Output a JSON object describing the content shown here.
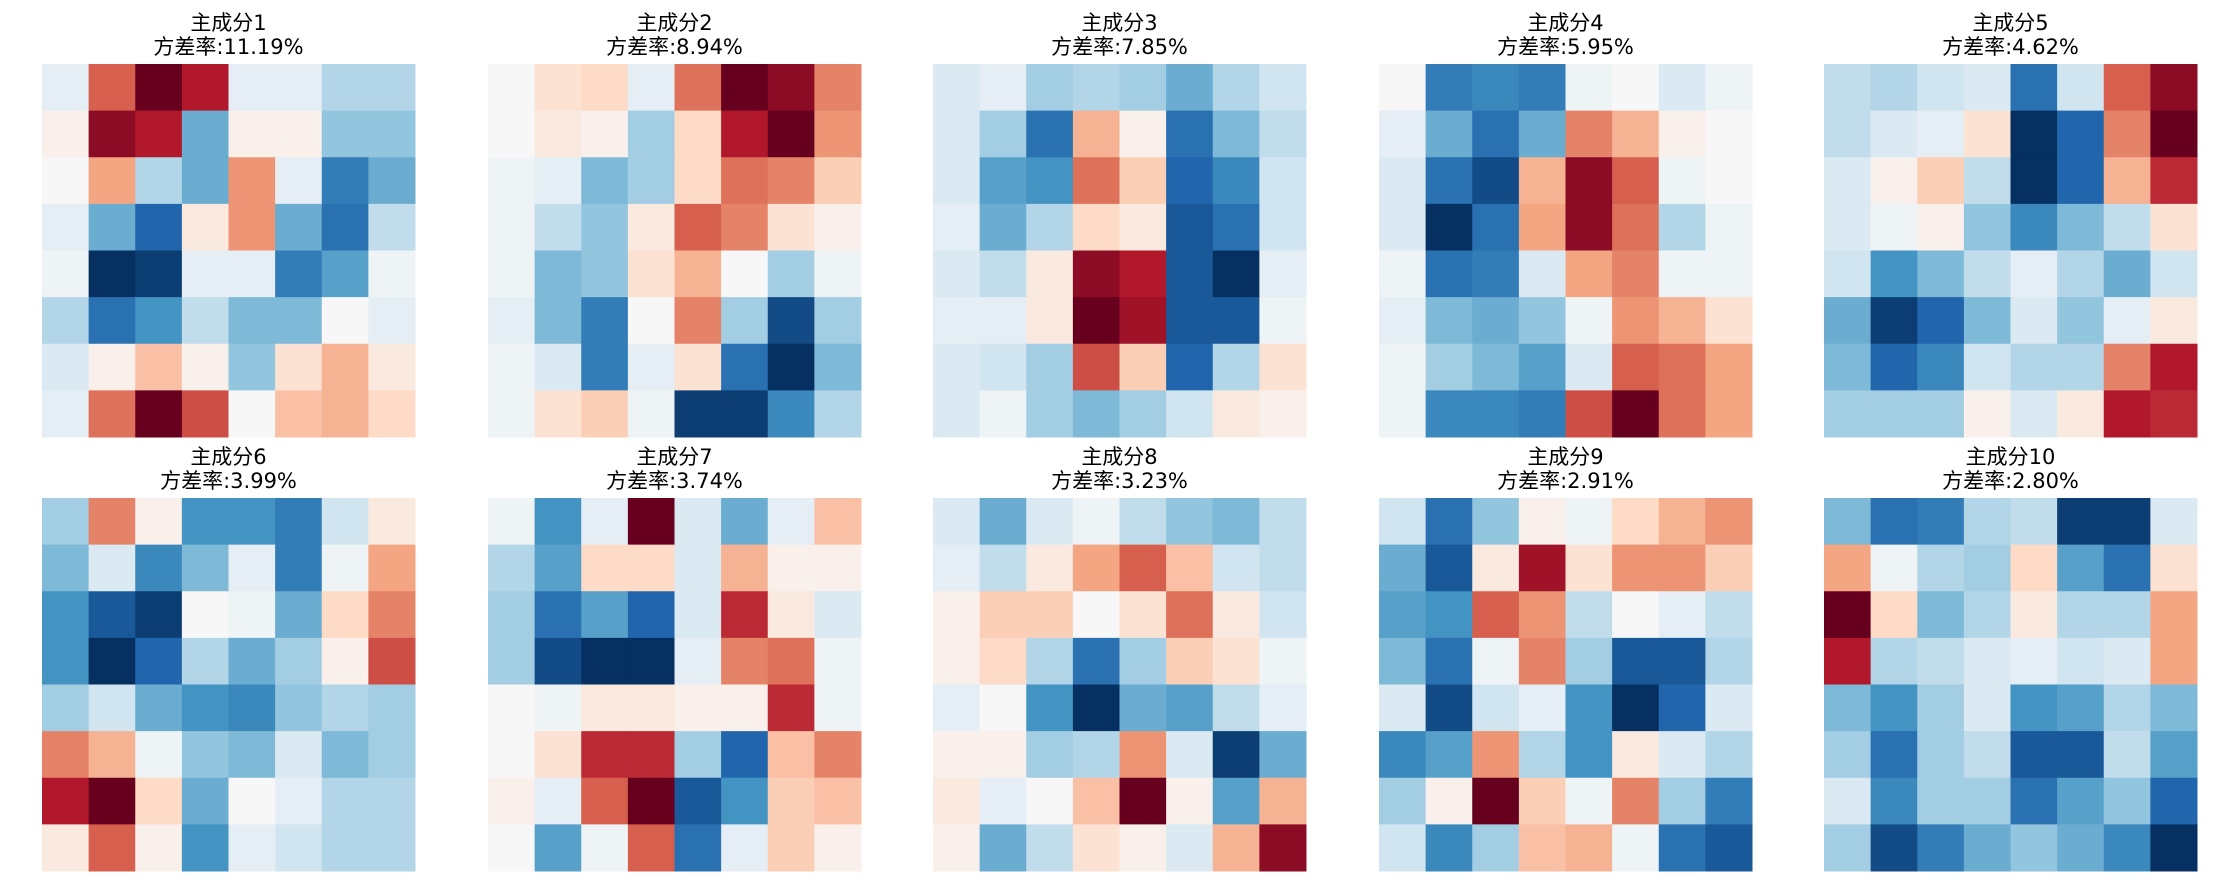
{
  "chart_data": [
    {
      "type": "heatmap",
      "title": "主成分1",
      "subtitle": "方差率:11.19%",
      "zlim": [
        -1,
        1
      ],
      "colors": [
        "#053061",
        "#2166ac",
        "#4393c3",
        "#92c5de",
        "#d1e5f0",
        "#f7f7f7",
        "#fddbc7",
        "#f4a582",
        "#d6604d",
        "#b2182b",
        "#67001f"
      ],
      "values": [
        [
          -0.1,
          0.6,
          1,
          0.8,
          -0.1,
          -0.1,
          -0.3,
          -0.3
        ],
        [
          0.05,
          0.9,
          0.8,
          -0.5,
          0.05,
          0.05,
          -0.4,
          -0.4
        ],
        [
          0,
          0.4,
          -0.3,
          -0.5,
          0.45,
          -0.1,
          -0.7,
          -0.5
        ],
        [
          -0.1,
          -0.5,
          -0.8,
          0.1,
          0.45,
          -0.5,
          -0.75,
          -0.25
        ],
        [
          -0.05,
          -1,
          -0.95,
          -0.1,
          -0.1,
          -0.7,
          -0.55,
          -0.05
        ],
        [
          -0.3,
          -0.75,
          -0.6,
          -0.25,
          -0.45,
          -0.45,
          0,
          -0.1
        ],
        [
          -0.15,
          0.05,
          0.3,
          0.05,
          -0.4,
          0.15,
          0.35,
          0.1
        ],
        [
          -0.1,
          0.55,
          1,
          0.65,
          0,
          0.3,
          0.35,
          0.2
        ]
      ]
    },
    {
      "type": "heatmap",
      "title": "主成分2",
      "subtitle": "方差率:8.94%",
      "zlim": [
        -1,
        1
      ],
      "colors": [
        "#053061",
        "#2166ac",
        "#4393c3",
        "#92c5de",
        "#d1e5f0",
        "#f7f7f7",
        "#fddbc7",
        "#f4a582",
        "#d6604d",
        "#b2182b",
        "#67001f"
      ],
      "values": [
        [
          0,
          0.15,
          0.2,
          -0.1,
          0.55,
          1,
          0.9,
          0.5
        ],
        [
          0,
          0.1,
          0.05,
          -0.35,
          0.2,
          0.8,
          1,
          0.45
        ],
        [
          -0.05,
          -0.1,
          -0.45,
          -0.35,
          0.2,
          0.55,
          0.5,
          0.25
        ],
        [
          -0.05,
          -0.25,
          -0.4,
          0.1,
          0.6,
          0.5,
          0.15,
          0.05
        ],
        [
          -0.05,
          -0.45,
          -0.4,
          0.15,
          0.35,
          0,
          -0.35,
          -0.05
        ],
        [
          -0.1,
          -0.45,
          -0.7,
          0,
          0.5,
          -0.35,
          -0.9,
          -0.35
        ],
        [
          -0.05,
          -0.15,
          -0.7,
          -0.1,
          0.15,
          -0.75,
          -1,
          -0.45
        ],
        [
          -0.05,
          0.15,
          0.25,
          -0.05,
          -0.95,
          -0.95,
          -0.65,
          -0.3
        ]
      ]
    },
    {
      "type": "heatmap",
      "title": "主成分3",
      "subtitle": "方差率:7.85%",
      "zlim": [
        -1,
        1
      ],
      "colors": [
        "#053061",
        "#2166ac",
        "#4393c3",
        "#92c5de",
        "#d1e5f0",
        "#f7f7f7",
        "#fddbc7",
        "#f4a582",
        "#d6604d",
        "#b2182b",
        "#67001f"
      ],
      "values": [
        [
          -0.15,
          -0.1,
          -0.35,
          -0.3,
          -0.35,
          -0.5,
          -0.3,
          -0.2
        ],
        [
          -0.15,
          -0.35,
          -0.75,
          0.35,
          0.05,
          -0.75,
          -0.45,
          -0.25
        ],
        [
          -0.15,
          -0.55,
          -0.6,
          0.55,
          0.25,
          -0.8,
          -0.65,
          -0.2
        ],
        [
          -0.1,
          -0.5,
          -0.3,
          0.2,
          0.1,
          -0.85,
          -0.75,
          -0.2
        ],
        [
          -0.15,
          -0.25,
          0.1,
          0.9,
          0.8,
          -0.85,
          -1,
          -0.1
        ],
        [
          -0.1,
          -0.1,
          0.1,
          1,
          0.85,
          -0.85,
          -0.85,
          -0.05
        ],
        [
          -0.15,
          -0.2,
          -0.35,
          0.65,
          0.25,
          -0.8,
          -0.3,
          0.15
        ],
        [
          -0.15,
          -0.05,
          -0.35,
          -0.45,
          -0.35,
          -0.2,
          0.1,
          0.05
        ]
      ]
    },
    {
      "type": "heatmap",
      "title": "主成分4",
      "subtitle": "方差率:5.95%",
      "zlim": [
        -1,
        1
      ],
      "colors": [
        "#053061",
        "#2166ac",
        "#4393c3",
        "#92c5de",
        "#d1e5f0",
        "#f7f7f7",
        "#fddbc7",
        "#f4a582",
        "#d6604d",
        "#b2182b",
        "#67001f"
      ],
      "values": [
        [
          0,
          -0.7,
          -0.65,
          -0.7,
          -0.05,
          0,
          -0.15,
          -0.05
        ],
        [
          -0.1,
          -0.5,
          -0.75,
          -0.5,
          0.5,
          0.35,
          0.05,
          0
        ],
        [
          -0.15,
          -0.75,
          -0.9,
          0.35,
          0.9,
          0.6,
          -0.05,
          0
        ],
        [
          -0.15,
          -1,
          -0.75,
          0.4,
          0.9,
          0.55,
          -0.3,
          -0.05
        ],
        [
          -0.05,
          -0.75,
          -0.7,
          -0.15,
          0.4,
          0.5,
          -0.05,
          -0.05
        ],
        [
          -0.1,
          -0.45,
          -0.5,
          -0.4,
          -0.05,
          0.45,
          0.35,
          0.15
        ],
        [
          -0.05,
          -0.35,
          -0.45,
          -0.55,
          -0.15,
          0.6,
          0.55,
          0.4
        ],
        [
          -0.05,
          -0.65,
          -0.65,
          -0.7,
          0.65,
          1,
          0.55,
          0.4
        ]
      ]
    },
    {
      "type": "heatmap",
      "title": "主成分5",
      "subtitle": "方差率:4.62%",
      "zlim": [
        -1,
        1
      ],
      "colors": [
        "#053061",
        "#2166ac",
        "#4393c3",
        "#92c5de",
        "#d1e5f0",
        "#f7f7f7",
        "#fddbc7",
        "#f4a582",
        "#d6604d",
        "#b2182b",
        "#67001f"
      ],
      "values": [
        [
          -0.25,
          -0.3,
          -0.2,
          -0.15,
          -0.75,
          -0.2,
          0.6,
          0.9
        ],
        [
          -0.25,
          -0.15,
          -0.1,
          0.15,
          -1,
          -0.8,
          0.5,
          1
        ],
        [
          -0.15,
          0.05,
          0.25,
          -0.25,
          -1,
          -0.8,
          0.35,
          0.75
        ],
        [
          -0.15,
          -0.05,
          0.05,
          -0.4,
          -0.65,
          -0.45,
          -0.25,
          0.15
        ],
        [
          -0.2,
          -0.6,
          -0.45,
          -0.25,
          -0.1,
          -0.3,
          -0.5,
          -0.2
        ],
        [
          -0.5,
          -0.95,
          -0.8,
          -0.45,
          -0.15,
          -0.4,
          -0.1,
          0.1
        ],
        [
          -0.45,
          -0.8,
          -0.65,
          -0.2,
          -0.3,
          -0.3,
          0.5,
          0.8
        ],
        [
          -0.35,
          -0.35,
          -0.35,
          0.05,
          -0.15,
          0.1,
          0.8,
          0.75
        ]
      ]
    },
    {
      "type": "heatmap",
      "title": "主成分6",
      "subtitle": "方差率:3.99%",
      "zlim": [
        -1,
        1
      ],
      "colors": [
        "#053061",
        "#2166ac",
        "#4393c3",
        "#92c5de",
        "#d1e5f0",
        "#f7f7f7",
        "#fddbc7",
        "#f4a582",
        "#d6604d",
        "#b2182b",
        "#67001f"
      ],
      "values": [
        [
          -0.35,
          0.5,
          0.05,
          -0.6,
          -0.6,
          -0.7,
          -0.2,
          0.1
        ],
        [
          -0.45,
          -0.15,
          -0.65,
          -0.45,
          -0.1,
          -0.7,
          -0.05,
          0.4
        ],
        [
          -0.6,
          -0.85,
          -0.95,
          0,
          -0.05,
          -0.5,
          0.2,
          0.5
        ],
        [
          -0.6,
          -1,
          -0.8,
          -0.3,
          -0.5,
          -0.35,
          0.05,
          0.65
        ],
        [
          -0.35,
          -0.2,
          -0.5,
          -0.6,
          -0.65,
          -0.4,
          -0.3,
          -0.35
        ],
        [
          0.5,
          0.35,
          -0.05,
          -0.4,
          -0.45,
          -0.15,
          -0.45,
          -0.35
        ],
        [
          0.8,
          1,
          0.2,
          -0.5,
          0,
          -0.1,
          -0.3,
          -0.3
        ],
        [
          0.1,
          0.6,
          0.05,
          -0.6,
          -0.1,
          -0.2,
          -0.3,
          -0.3
        ]
      ]
    },
    {
      "type": "heatmap",
      "title": "主成分7",
      "subtitle": "方差率:3.74%",
      "zlim": [
        -1,
        1
      ],
      "colors": [
        "#053061",
        "#2166ac",
        "#4393c3",
        "#92c5de",
        "#d1e5f0",
        "#f7f7f7",
        "#fddbc7",
        "#f4a582",
        "#d6604d",
        "#b2182b",
        "#67001f"
      ],
      "values": [
        [
          -0.05,
          -0.6,
          -0.1,
          1,
          -0.15,
          -0.5,
          -0.1,
          0.3
        ],
        [
          -0.3,
          -0.55,
          0.2,
          0.2,
          -0.15,
          0.35,
          0.05,
          0.05
        ],
        [
          -0.35,
          -0.75,
          -0.55,
          -0.8,
          -0.15,
          0.75,
          0.1,
          -0.15
        ],
        [
          -0.35,
          -0.9,
          -1,
          -1,
          -0.1,
          0.5,
          0.55,
          -0.05
        ],
        [
          0,
          -0.05,
          0.1,
          0.1,
          0.05,
          0.05,
          0.75,
          -0.05
        ],
        [
          0,
          0.15,
          0.75,
          0.75,
          -0.35,
          -0.8,
          0.3,
          0.5
        ],
        [
          0.05,
          -0.1,
          0.6,
          1,
          -0.85,
          -0.6,
          0.25,
          0.3
        ],
        [
          0,
          -0.55,
          -0.05,
          0.6,
          -0.75,
          -0.1,
          0.25,
          0.05
        ]
      ]
    },
    {
      "type": "heatmap",
      "title": "主成分8",
      "subtitle": "方差率:3.23%",
      "zlim": [
        -1,
        1
      ],
      "colors": [
        "#053061",
        "#2166ac",
        "#4393c3",
        "#92c5de",
        "#d1e5f0",
        "#f7f7f7",
        "#fddbc7",
        "#f4a582",
        "#d6604d",
        "#b2182b",
        "#67001f"
      ],
      "values": [
        [
          -0.15,
          -0.5,
          -0.15,
          -0.05,
          -0.25,
          -0.4,
          -0.45,
          -0.25
        ],
        [
          -0.1,
          -0.25,
          0.1,
          0.4,
          0.6,
          0.3,
          -0.2,
          -0.25
        ],
        [
          0.05,
          0.25,
          0.25,
          0,
          0.15,
          0.55,
          0.1,
          -0.2
        ],
        [
          0.05,
          0.2,
          -0.3,
          -0.75,
          -0.35,
          0.25,
          0.15,
          -0.05
        ],
        [
          -0.1,
          0,
          -0.6,
          -1,
          -0.5,
          -0.55,
          -0.25,
          -0.1
        ],
        [
          0.05,
          0.05,
          -0.35,
          -0.3,
          0.45,
          -0.15,
          -0.95,
          -0.5
        ],
        [
          0.1,
          -0.1,
          0,
          0.3,
          1,
          0.05,
          -0.55,
          0.35
        ],
        [
          0.05,
          -0.5,
          -0.25,
          0.15,
          0.05,
          -0.15,
          0.35,
          0.9
        ]
      ]
    },
    {
      "type": "heatmap",
      "title": "主成分9",
      "subtitle": "方差率:2.91%",
      "zlim": [
        -1,
        1
      ],
      "colors": [
        "#053061",
        "#2166ac",
        "#4393c3",
        "#92c5de",
        "#d1e5f0",
        "#f7f7f7",
        "#fddbc7",
        "#f4a582",
        "#d6604d",
        "#b2182b",
        "#67001f"
      ],
      "values": [
        [
          -0.2,
          -0.75,
          -0.4,
          0.05,
          -0.05,
          0.2,
          0.35,
          0.45
        ],
        [
          -0.5,
          -0.85,
          0.1,
          0.85,
          0.15,
          0.45,
          0.45,
          0.25
        ],
        [
          -0.55,
          -0.6,
          0.6,
          0.45,
          -0.25,
          0,
          -0.1,
          -0.25
        ],
        [
          -0.45,
          -0.75,
          -0.05,
          0.5,
          -0.35,
          -0.85,
          -0.85,
          -0.3
        ],
        [
          -0.15,
          -0.9,
          -0.2,
          -0.1,
          -0.6,
          -1,
          -0.8,
          -0.15
        ],
        [
          -0.65,
          -0.55,
          0.45,
          -0.3,
          -0.6,
          0.1,
          -0.15,
          -0.3
        ],
        [
          -0.35,
          0.05,
          1,
          0.25,
          -0.05,
          0.5,
          -0.35,
          -0.7
        ],
        [
          -0.2,
          -0.65,
          -0.35,
          0.3,
          0.35,
          -0.05,
          -0.75,
          -0.85
        ]
      ]
    },
    {
      "type": "heatmap",
      "title": "主成分10",
      "subtitle": "方差率:2.80%",
      "zlim": [
        -1,
        1
      ],
      "colors": [
        "#053061",
        "#2166ac",
        "#4393c3",
        "#92c5de",
        "#d1e5f0",
        "#f7f7f7",
        "#fddbc7",
        "#f4a582",
        "#d6604d",
        "#b2182b",
        "#67001f"
      ],
      "values": [
        [
          -0.45,
          -0.75,
          -0.7,
          -0.3,
          -0.25,
          -0.95,
          -0.95,
          -0.15
        ],
        [
          0.4,
          -0.05,
          -0.3,
          -0.35,
          0.2,
          -0.55,
          -0.75,
          0.15
        ],
        [
          1,
          0.2,
          -0.45,
          -0.3,
          0.1,
          -0.3,
          -0.3,
          0.4
        ],
        [
          0.8,
          -0.3,
          -0.25,
          -0.15,
          -0.1,
          -0.2,
          -0.15,
          0.4
        ],
        [
          -0.45,
          -0.6,
          -0.35,
          -0.15,
          -0.6,
          -0.55,
          -0.3,
          -0.45
        ],
        [
          -0.35,
          -0.75,
          -0.35,
          -0.25,
          -0.85,
          -0.85,
          -0.25,
          -0.55
        ],
        [
          -0.15,
          -0.65,
          -0.35,
          -0.35,
          -0.75,
          -0.55,
          -0.4,
          -0.8
        ],
        [
          -0.35,
          -0.9,
          -0.7,
          -0.5,
          -0.4,
          -0.5,
          -0.65,
          -1
        ]
      ]
    }
  ]
}
